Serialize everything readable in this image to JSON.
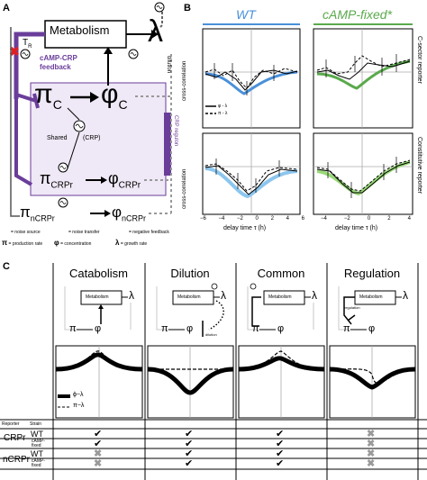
{
  "panel_a": {
    "label": "A",
    "metabolism": "Metabolism",
    "lambda": "λ",
    "tr": "T",
    "tr_sub": "R",
    "feedback_line1": "cAMP-CRP",
    "feedback_line2": "feedback",
    "pi_c": "π",
    "pi_c_sub": "C",
    "phi_c": "φ",
    "phi_c_sub": "C",
    "shared": "Shared",
    "crp": "(CRP)",
    "crp_regulon": "CRP regulon",
    "pi_crpr": "π",
    "pi_crpr_sub": "CRPr",
    "phi_crpr": "φ",
    "phi_crpr_sub": "CRPr",
    "pi_ncrpr": "π",
    "pi_ncrpr_sub": "nCRPr",
    "phi_ncrpr": "φ",
    "phi_ncrpr_sub": "nCRPr",
    "dilution": "dilution",
    "legend": {
      "noise_source": "= noise source",
      "noise_transfer": "= noise transfer",
      "negative_feedback": "= negative feedback",
      "production_rate": "= production rate",
      "concentration": "= concentration",
      "growth_rate": "= growth rate"
    }
  },
  "panel_b": {
    "label": "B",
    "wt": "WT",
    "camp_fixed": "cAMP-fixed*",
    "ylabel": "cross-correlation",
    "xlabel": "delay time τ (h)",
    "row1_label": "C-sector reporter",
    "row2_label": "Constitutive reporter",
    "legend_phi": "φ - λ",
    "legend_pi": "π - λ",
    "xticks_left": [
      "−6",
      "−4",
      "−2",
      "0",
      "2",
      "4",
      "6"
    ],
    "xticks_right": [
      "−4",
      "−2",
      "0",
      "2",
      "4"
    ]
  },
  "panel_c": {
    "label": "C",
    "columns": [
      "Catabolism",
      "Dilution",
      "Common",
      "Regulation"
    ],
    "metabolism": "Metabolism",
    "lambda": "λ",
    "pi": "π",
    "phi": "φ",
    "dilution": "dilution",
    "regulation": "regulation",
    "legend_phi": "ϕ−λ",
    "legend_pi": "π−λ",
    "reporter_header": "Reporter",
    "strain_header": "Strain",
    "rows": [
      {
        "reporter": "CRPr",
        "strain": "WT",
        "marks": [
          "check",
          "check",
          "check",
          "cross"
        ]
      },
      {
        "reporter": "",
        "strain": "cAMP-fixed",
        "marks": [
          "check",
          "check",
          "check",
          "cross"
        ]
      },
      {
        "reporter": "nCRPr",
        "strain": "WT",
        "marks": [
          "cross",
          "check",
          "check",
          "cross"
        ]
      },
      {
        "reporter": "",
        "strain": "cAMP-fixed",
        "marks": [
          "cross",
          "check",
          "check",
          "cross"
        ]
      }
    ]
  },
  "colors": {
    "purple": "#6a3d9a",
    "light_purple": "#efe8f6",
    "wt_blue": "#4a90d9",
    "wt_light_blue": "#8cc6ee",
    "camp_green": "#5aaa4c",
    "camp_light_green": "#9ad87a",
    "red_cross": "#e02020",
    "grey_cross": "#9a9a9a"
  }
}
